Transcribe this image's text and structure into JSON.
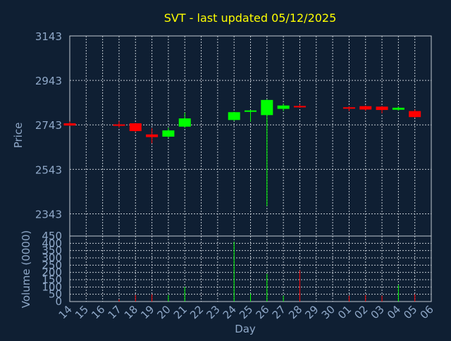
{
  "colors": {
    "background": "#0f1f33",
    "title": "#ffff00",
    "axis_text": "#8fa8c8",
    "grid": "#c0c8d0",
    "up": "#00ff00",
    "down": "#ff0000",
    "frame": "#c0c8d0"
  },
  "chart_data": [
    {
      "type": "candlestick",
      "title": "SVT - last updated 05/12/2025",
      "xlabel": "",
      "ylabel": "Price",
      "ylim": [
        2243,
        3143
      ],
      "yticks": [
        3143,
        2943,
        2743,
        2543,
        2343
      ],
      "grid": true,
      "x_tick_labels": [
        "14",
        "15",
        "16",
        "17",
        "18",
        "19",
        "20",
        "21",
        "22",
        "23",
        "24",
        "25",
        "26",
        "27",
        "28",
        "29",
        "30",
        "01",
        "02",
        "03",
        "04",
        "05",
        "06"
      ],
      "candles": [
        {
          "day": "14",
          "open": 2750,
          "high": 2758,
          "low": 2738,
          "close": 2740
        },
        {
          "day": "17",
          "open": 2745,
          "high": 2760,
          "low": 2730,
          "close": 2743
        },
        {
          "day": "18",
          "open": 2750,
          "high": 2752,
          "low": 2710,
          "close": 2715
        },
        {
          "day": "19",
          "open": 2700,
          "high": 2728,
          "low": 2660,
          "close": 2688
        },
        {
          "day": "20",
          "open": 2690,
          "high": 2730,
          "low": 2685,
          "close": 2718
        },
        {
          "day": "21",
          "open": 2735,
          "high": 2798,
          "low": 2730,
          "close": 2772
        },
        {
          "day": "24",
          "open": 2765,
          "high": 2802,
          "low": 2760,
          "close": 2800
        },
        {
          "day": "25",
          "open": 2803,
          "high": 2810,
          "low": 2757,
          "close": 2808
        },
        {
          "day": "26",
          "open": 2787,
          "high": 2858,
          "low": 2378,
          "close": 2855
        },
        {
          "day": "27",
          "open": 2815,
          "high": 2838,
          "low": 2805,
          "close": 2830
        },
        {
          "day": "28",
          "open": 2828,
          "high": 2836,
          "low": 2820,
          "close": 2823
        },
        {
          "day": "01",
          "open": 2822,
          "high": 2826,
          "low": 2805,
          "close": 2820
        },
        {
          "day": "02",
          "open": 2827,
          "high": 2830,
          "low": 2806,
          "close": 2812
        },
        {
          "day": "03",
          "open": 2825,
          "high": 2828,
          "low": 2795,
          "close": 2810
        },
        {
          "day": "04",
          "open": 2811,
          "high": 2826,
          "low": 2807,
          "close": 2820
        },
        {
          "day": "05",
          "open": 2805,
          "high": 2812,
          "low": 2775,
          "close": 2778
        }
      ]
    },
    {
      "type": "bar",
      "title": "",
      "xlabel": "Day",
      "ylabel": "Volume (0000)",
      "ylim": [
        0,
        450
      ],
      "yticks": [
        450,
        400,
        350,
        300,
        250,
        200,
        150,
        100,
        50,
        0
      ],
      "grid": true,
      "x_tick_labels": [
        "14",
        "15",
        "16",
        "17",
        "18",
        "19",
        "20",
        "21",
        "22",
        "23",
        "24",
        "25",
        "26",
        "27",
        "28",
        "29",
        "30",
        "01",
        "02",
        "03",
        "04",
        "05",
        "06"
      ],
      "bars": [
        {
          "day": "14",
          "value": 0,
          "direction": "down"
        },
        {
          "day": "17",
          "value": 15,
          "direction": "down"
        },
        {
          "day": "18",
          "value": 45,
          "direction": "down"
        },
        {
          "day": "19",
          "value": 50,
          "direction": "down"
        },
        {
          "day": "20",
          "value": 45,
          "direction": "up"
        },
        {
          "day": "21",
          "value": 100,
          "direction": "up"
        },
        {
          "day": "24",
          "value": 410,
          "direction": "up"
        },
        {
          "day": "25",
          "value": 55,
          "direction": "up"
        },
        {
          "day": "26",
          "value": 190,
          "direction": "up"
        },
        {
          "day": "27",
          "value": 40,
          "direction": "up"
        },
        {
          "day": "28",
          "value": 215,
          "direction": "down"
        },
        {
          "day": "01",
          "value": 40,
          "direction": "down"
        },
        {
          "day": "02",
          "value": 45,
          "direction": "down"
        },
        {
          "day": "03",
          "value": 40,
          "direction": "down"
        },
        {
          "day": "04",
          "value": 115,
          "direction": "up"
        },
        {
          "day": "05",
          "value": 50,
          "direction": "down"
        }
      ]
    }
  ]
}
